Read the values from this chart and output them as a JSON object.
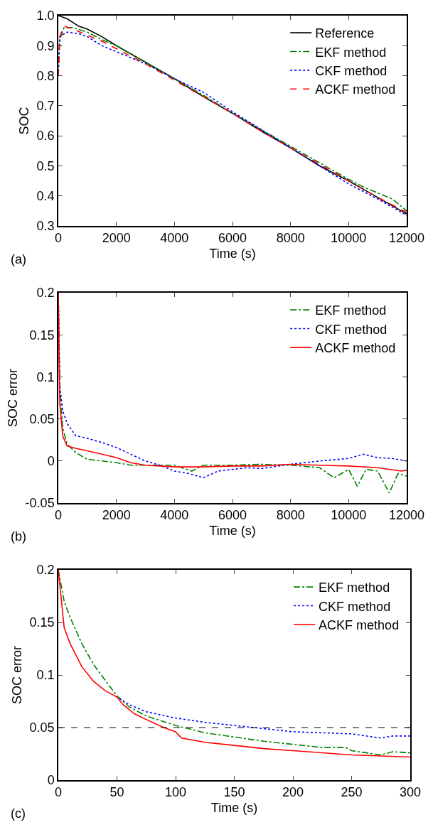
{
  "chart_data": [
    {
      "type": "line",
      "xlabel": "Time (s)",
      "ylabel": "SOC",
      "annotations": [
        "(a)"
      ],
      "xlim": [
        0,
        12000
      ],
      "xticks": [
        0,
        2000,
        4000,
        6000,
        8000,
        10000,
        12000
      ],
      "ylim": [
        0.3,
        1.0
      ],
      "yticks": [
        0.3,
        0.4,
        0.5,
        0.6,
        0.7,
        0.8,
        0.9,
        {
          "value": 1.0,
          "label": "1.0"
        }
      ],
      "grid": false,
      "legend": "top right",
      "series": [
        {
          "name": "Reference",
          "color": "#000000",
          "line_style": "solid",
          "x": [
            0,
            300,
            700,
            1000,
            1500,
            2000,
            3000,
            4000,
            5000,
            6000,
            7000,
            8000,
            9000,
            10000,
            11000,
            12000
          ],
          "values": [
            1.0,
            0.99,
            0.965,
            0.955,
            0.93,
            0.9,
            0.845,
            0.79,
            0.73,
            0.675,
            0.615,
            0.56,
            0.5,
            0.45,
            0.395,
            0.34
          ]
        },
        {
          "name": "EKF method",
          "color": "#008000",
          "line_style": "dashdot",
          "x": [
            0,
            50,
            200,
            500,
            1000,
            1500,
            2000,
            3000,
            4000,
            5000,
            6000,
            7000,
            8000,
            9000,
            10000,
            10500,
            11000,
            11500,
            12000
          ],
          "values": [
            0.8,
            0.92,
            0.96,
            0.96,
            0.945,
            0.92,
            0.9,
            0.845,
            0.79,
            0.735,
            0.675,
            0.62,
            0.565,
            0.51,
            0.455,
            0.43,
            0.41,
            0.39,
            0.35
          ]
        },
        {
          "name": "CKF method",
          "color": "#0000ff",
          "line_style": "dotted",
          "x": [
            0,
            50,
            300,
            700,
            1000,
            1500,
            2000,
            3000,
            4000,
            5000,
            6000,
            7000,
            8000,
            9000,
            10000,
            11000,
            12000
          ],
          "values": [
            0.8,
            0.93,
            0.945,
            0.94,
            0.93,
            0.9,
            0.88,
            0.84,
            0.79,
            0.745,
            0.68,
            0.62,
            0.56,
            0.5,
            0.44,
            0.39,
            0.335
          ]
        },
        {
          "name": "ACKF method",
          "color": "#ff0000",
          "line_style": "dashed",
          "x": [
            0,
            50,
            200,
            500,
            1000,
            1500,
            2000,
            3000,
            4000,
            5000,
            6000,
            7000,
            8000,
            9000,
            10000,
            11000,
            12000
          ],
          "values": [
            0.8,
            0.93,
            0.965,
            0.955,
            0.935,
            0.915,
            0.89,
            0.84,
            0.785,
            0.73,
            0.675,
            0.615,
            0.56,
            0.505,
            0.45,
            0.395,
            0.345
          ]
        }
      ]
    },
    {
      "type": "line",
      "xlabel": "Time (s)",
      "ylabel": "SOC error",
      "annotations": [
        "(b)"
      ],
      "xlim": [
        0,
        12000
      ],
      "xticks": [
        0,
        2000,
        4000,
        6000,
        8000,
        10000,
        12000
      ],
      "ylim": [
        -0.05,
        0.2
      ],
      "yticks": [
        -0.05,
        0,
        0.05,
        0.1,
        0.15,
        0.2
      ],
      "grid": false,
      "legend": "top right",
      "series": [
        {
          "name": "EKF method",
          "color": "#008000",
          "line_style": "dashdot",
          "x": [
            0,
            50,
            150,
            300,
            600,
            1000,
            1500,
            2000,
            2500,
            3000,
            4000,
            4600,
            5000,
            6000,
            7000,
            8000,
            9000,
            9500,
            10000,
            10300,
            10600,
            11000,
            11400,
            11700,
            12000
          ],
          "values": [
            0.2,
            0.09,
            0.04,
            0.02,
            0.01,
            0.002,
            0,
            -0.002,
            -0.005,
            -0.005,
            -0.005,
            -0.012,
            -0.005,
            -0.005,
            -0.004,
            -0.005,
            -0.008,
            -0.02,
            -0.01,
            -0.03,
            -0.01,
            -0.012,
            -0.038,
            -0.015,
            -0.018
          ]
        },
        {
          "name": "CKF method",
          "color": "#0000ff",
          "line_style": "dotted",
          "x": [
            0,
            50,
            150,
            300,
            600,
            1000,
            1500,
            2000,
            2500,
            3000,
            3500,
            4000,
            4500,
            5000,
            5500,
            6000,
            6500,
            7000,
            8000,
            9000,
            10000,
            10500,
            11000,
            11500,
            12000
          ],
          "values": [
            0.2,
            0.09,
            0.06,
            0.045,
            0.03,
            0.027,
            0.022,
            0.016,
            0.008,
            0,
            -0.005,
            -0.012,
            -0.015,
            -0.02,
            -0.012,
            -0.01,
            -0.008,
            -0.009,
            -0.004,
            0,
            0.003,
            0.008,
            0.004,
            0.003,
            0
          ]
        },
        {
          "name": "ACKF method",
          "color": "#ff0000",
          "line_style": "solid",
          "x": [
            0,
            50,
            150,
            300,
            600,
            1000,
            1500,
            2000,
            2500,
            3000,
            4000,
            5000,
            6000,
            7000,
            8000,
            9000,
            10000,
            11000,
            11800,
            12000
          ],
          "values": [
            0.2,
            0.07,
            0.03,
            0.018,
            0.015,
            0.012,
            0.008,
            0.004,
            -0.002,
            -0.005,
            -0.007,
            -0.007,
            -0.006,
            -0.006,
            -0.004,
            -0.005,
            -0.006,
            -0.008,
            -0.012,
            -0.011
          ]
        }
      ]
    },
    {
      "type": "line",
      "xlabel": "Time (s)",
      "ylabel": "SOC error",
      "annotations": [
        "(c)"
      ],
      "xlim": [
        0,
        300
      ],
      "xticks": [
        0,
        50,
        100,
        150,
        200,
        250,
        300
      ],
      "ylim": [
        0,
        0.2
      ],
      "yticks": [
        0,
        0.05,
        0.1,
        0.15,
        0.2
      ],
      "grid": false,
      "legend": "top right",
      "ref_lines": [
        {
          "axis": "y",
          "value": 0.05,
          "color": "#000000",
          "line_style": "dashed"
        }
      ],
      "series": [
        {
          "name": "EKF method",
          "color": "#008000",
          "line_style": "dashdot",
          "x": [
            0,
            5,
            10,
            20,
            30,
            40,
            50,
            60,
            75,
            100,
            125,
            150,
            175,
            200,
            225,
            245,
            250,
            275,
            285,
            300
          ],
          "values": [
            0.2,
            0.17,
            0.155,
            0.13,
            0.11,
            0.095,
            0.08,
            0.07,
            0.061,
            0.052,
            0.045,
            0.041,
            0.037,
            0.034,
            0.031,
            0.031,
            0.028,
            0.024,
            0.027,
            0.026
          ]
        },
        {
          "name": "CKF method",
          "color": "#0000ff",
          "line_style": "dotted",
          "x": [
            52,
            60,
            75,
            100,
            125,
            150,
            175,
            200,
            250,
            275,
            285,
            300
          ],
          "values": [
            0.078,
            0.072,
            0.065,
            0.059,
            0.055,
            0.052,
            0.049,
            0.046,
            0.044,
            0.04,
            0.042,
            0.042
          ]
        },
        {
          "name": "ACKF method",
          "color": "#ff0000",
          "line_style": "solid",
          "x": [
            0,
            5,
            10,
            20,
            30,
            40,
            50,
            55,
            65,
            80,
            90,
            100,
            105,
            125,
            150,
            175,
            200,
            250,
            275,
            300
          ],
          "values": [
            0.2,
            0.145,
            0.13,
            0.108,
            0.094,
            0.085,
            0.079,
            0.072,
            0.063,
            0.055,
            0.05,
            0.046,
            0.04,
            0.036,
            0.033,
            0.03,
            0.028,
            0.024,
            0.023,
            0.022
          ]
        }
      ]
    }
  ]
}
